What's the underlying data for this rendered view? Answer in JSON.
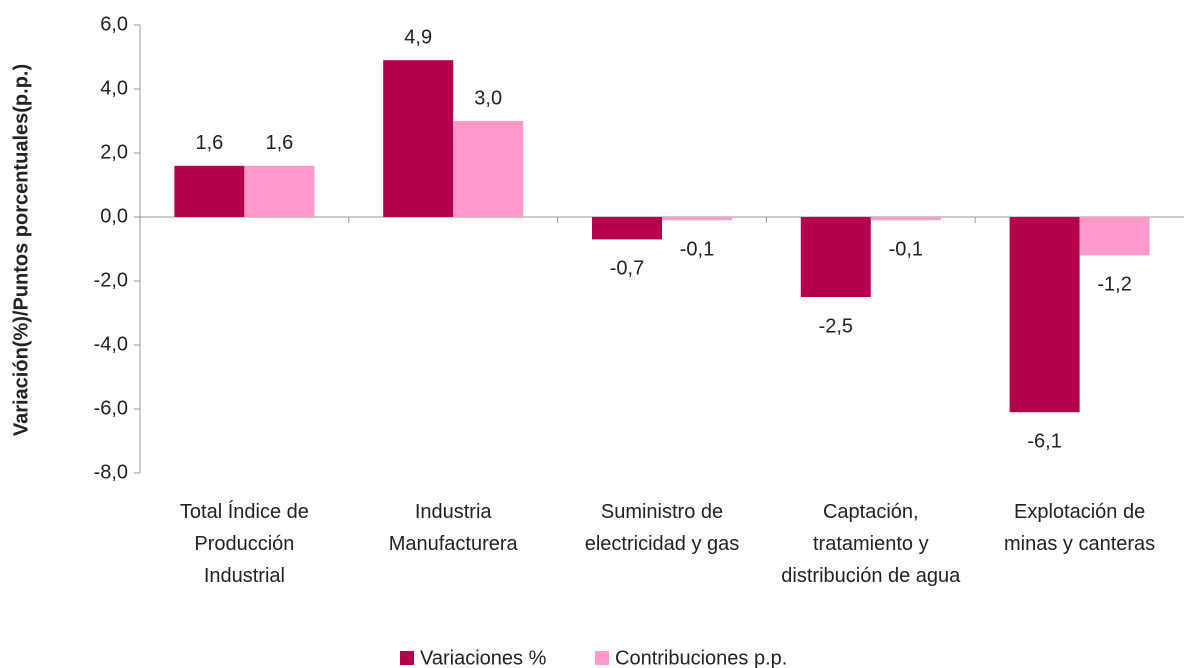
{
  "chart_data": {
    "type": "bar",
    "y_axis_label": "Variación(%)/Puntos porcentuales(p.p.)",
    "categories": [
      "Total Índice de Producción Industrial",
      "Industria Manufacturera",
      "Suministro de electricidad y gas",
      "Captación, tratamiento y distribución de agua",
      "Explotación de minas y canteras"
    ],
    "series": [
      {
        "name": "Variaciones %",
        "color": "#b5004b",
        "values": [
          1.6,
          4.9,
          -0.7,
          -2.5,
          -6.1
        ],
        "value_labels": [
          "1,6",
          "4,9",
          "-0,7",
          "-2,5",
          "-6,1"
        ]
      },
      {
        "name": "Contribuciones p.p.",
        "color": "#ff99cc",
        "values": [
          1.6,
          3.0,
          -0.1,
          -0.1,
          -1.2
        ],
        "value_labels": [
          "1,6",
          "3,0",
          "-0,1",
          "-0,1",
          "-1,2"
        ]
      }
    ],
    "ylim": [
      -8,
      6
    ],
    "yticks": [
      {
        "value": -8,
        "label": "-8,0"
      },
      {
        "value": -6,
        "label": "-6,0"
      },
      {
        "value": -4,
        "label": "-4,0"
      },
      {
        "value": -2,
        "label": "-2,0"
      },
      {
        "value": 0,
        "label": "0,0"
      },
      {
        "value": 2,
        "label": "2,0"
      },
      {
        "value": 4,
        "label": "4,0"
      },
      {
        "value": 6,
        "label": "6,0"
      }
    ],
    "grid": false,
    "legend": "bottom"
  }
}
